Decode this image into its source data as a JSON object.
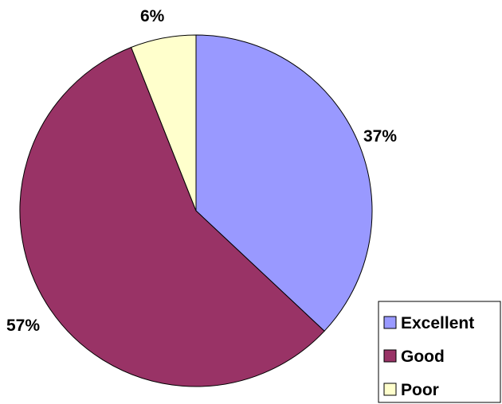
{
  "chart_data": {
    "type": "pie",
    "categories": [
      "Excellent",
      "Good",
      "Poor"
    ],
    "values": [
      37,
      57,
      6
    ],
    "data_labels": [
      "37%",
      "57%",
      "6%"
    ],
    "colors": [
      "#9999ff",
      "#993366",
      "#ffffcc"
    ],
    "legend": {
      "placement": "bottom-right",
      "entries": [
        "Excellent",
        "Good",
        "Poor"
      ]
    },
    "title": "",
    "xlabel": "",
    "ylabel": ""
  }
}
